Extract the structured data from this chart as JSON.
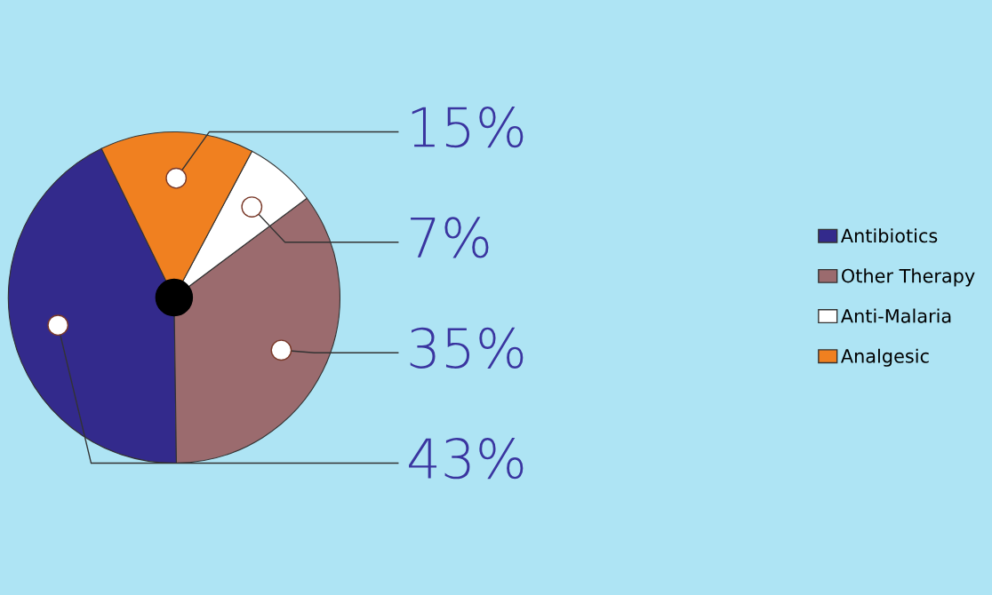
{
  "chart_data": {
    "type": "pie",
    "categories": [
      "Antibiotics",
      "Other Therapy",
      "Anti-Malaria",
      "Analgesic"
    ],
    "values": [
      43,
      35,
      7,
      15
    ],
    "colors": [
      "#332a8c",
      "#9b6b6e",
      "#ffffff",
      "#f08020"
    ],
    "value_labels": [
      "43%",
      "35%",
      "7%",
      "15%"
    ],
    "legend": "right"
  }
}
